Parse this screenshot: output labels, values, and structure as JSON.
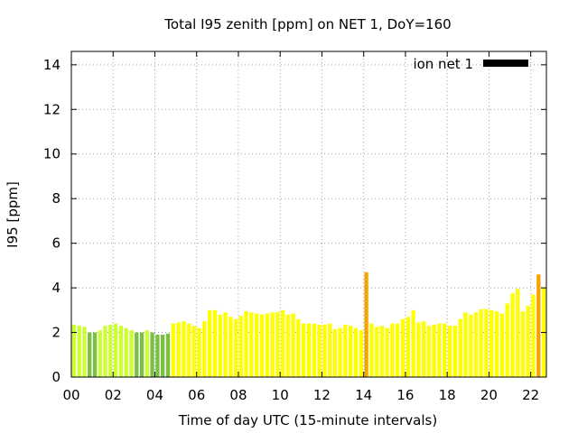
{
  "chart_data": {
    "type": "bar",
    "title": "Total I95 zenith [ppm] on NET 1, DoY=160",
    "xlabel": "Time of day UTC (15-minute intervals)",
    "ylabel": "I95 [ppm]",
    "xlim": [
      0,
      22.75
    ],
    "ylim": [
      0,
      14.6
    ],
    "x_ticks": [
      0,
      2,
      4,
      6,
      8,
      10,
      12,
      14,
      16,
      18,
      20,
      22
    ],
    "x_tick_labels": [
      "00",
      "02",
      "04",
      "06",
      "08",
      "10",
      "12",
      "14",
      "16",
      "18",
      "20",
      "22"
    ],
    "y_ticks": [
      0,
      2,
      4,
      6,
      8,
      10,
      12,
      14
    ],
    "y_tick_labels": [
      "0",
      "2",
      "4",
      "6",
      "8",
      "10",
      "12",
      "14"
    ],
    "grid": true,
    "legend": {
      "position": "top-right",
      "label": "ion net 1",
      "color": "#000000"
    },
    "bar_interval_hours": 0.25,
    "color_scale": {
      "green": "#7ac143",
      "yellow_green": "#ccff33",
      "yellow": "#ffff00",
      "orange": "#f5a300"
    },
    "series": [
      {
        "values": [
          2.35,
          2.3,
          2.25,
          2.0,
          2.0,
          2.1,
          2.3,
          2.35,
          2.4,
          2.3,
          2.2,
          2.1,
          2.0,
          2.0,
          2.1,
          2.0,
          1.9,
          1.9,
          1.95,
          2.4,
          2.45,
          2.5,
          2.4,
          2.3,
          2.2,
          2.5,
          3.0,
          3.0,
          2.8,
          2.9,
          2.7,
          2.6,
          2.75,
          2.95,
          2.9,
          2.85,
          2.8,
          2.85,
          2.9,
          2.9,
          3.0,
          2.8,
          2.85,
          2.6,
          2.4,
          2.4,
          2.4,
          2.35,
          2.35,
          2.4,
          2.15,
          2.2,
          2.35,
          2.3,
          2.2,
          2.1,
          4.7,
          2.4,
          2.25,
          2.3,
          2.2,
          2.4,
          2.4,
          2.6,
          2.7,
          3.0,
          2.45,
          2.5,
          2.3,
          2.35,
          2.4,
          2.4,
          2.3,
          2.3,
          2.6,
          2.9,
          2.8,
          2.9,
          3.05,
          3.05,
          3.0,
          2.95,
          2.85,
          3.3,
          3.75,
          3.95,
          2.95,
          3.2,
          3.7,
          4.6,
          4.0
        ],
        "colors": [
          "yellow_green",
          "yellow_green",
          "yellow_green",
          "green",
          "green",
          "yellow_green",
          "yellow_green",
          "yellow_green",
          "yellow_green",
          "yellow_green",
          "yellow_green",
          "yellow_green",
          "green",
          "green",
          "yellow_green",
          "green",
          "green",
          "green",
          "green",
          "yellow",
          "yellow",
          "yellow",
          "yellow",
          "yellow",
          "yellow",
          "yellow",
          "yellow",
          "yellow",
          "yellow",
          "yellow",
          "yellow",
          "yellow",
          "yellow",
          "yellow",
          "yellow",
          "yellow",
          "yellow",
          "yellow",
          "yellow",
          "yellow",
          "yellow",
          "yellow",
          "yellow",
          "yellow",
          "yellow",
          "yellow",
          "yellow",
          "yellow",
          "yellow",
          "yellow",
          "yellow",
          "yellow",
          "yellow",
          "yellow",
          "yellow",
          "yellow",
          "orange",
          "yellow",
          "yellow",
          "yellow",
          "yellow",
          "yellow",
          "yellow",
          "yellow",
          "yellow",
          "yellow",
          "yellow",
          "yellow",
          "yellow",
          "yellow",
          "yellow",
          "yellow",
          "yellow",
          "yellow",
          "yellow",
          "yellow",
          "yellow",
          "yellow",
          "yellow",
          "yellow",
          "yellow",
          "yellow",
          "yellow",
          "yellow",
          "yellow",
          "yellow",
          "yellow",
          "yellow",
          "yellow",
          "orange",
          "yellow"
        ]
      }
    ]
  }
}
